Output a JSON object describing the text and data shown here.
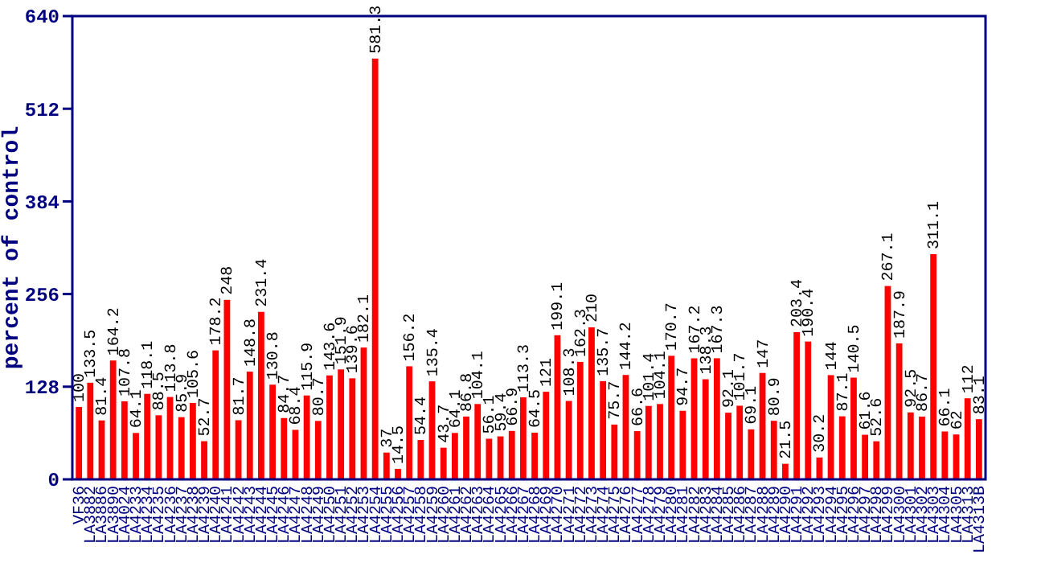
{
  "chart_data": {
    "type": "bar",
    "ylabel": "percent of control",
    "color": "#ff0000",
    "ylim": [
      0,
      640
    ],
    "yticks": [
      0,
      128,
      256,
      384,
      512,
      640
    ],
    "data_labels": true,
    "grid": false,
    "categories": [
      "VF36",
      "LA3882",
      "LA3886",
      "LA3890",
      "LA4024",
      "LA4233",
      "LA4234",
      "LA4235",
      "LA4236",
      "LA4237",
      "LA4238",
      "LA4239",
      "LA4240",
      "LA4241",
      "LA4242",
      "LA4243",
      "LA4244",
      "LA4245",
      "LA4246",
      "LA4247",
      "LA4248",
      "LA4249",
      "LA4250",
      "LA4251",
      "LA4252",
      "LA4253",
      "LA4254",
      "LA4255",
      "LA4256",
      "LA4257",
      "LA4258",
      "LA4259",
      "LA4260",
      "LA4261",
      "LA4262",
      "LA4263",
      "LA4264",
      "LA4265",
      "LA4266",
      "LA4267",
      "LA4268",
      "LA4269",
      "LA4270",
      "LA4271",
      "LA4272",
      "LA4273",
      "LA4274",
      "LA4275",
      "LA4276",
      "LA4277",
      "LA4278",
      "LA4279",
      "LA4280",
      "LA4281",
      "LA4282",
      "LA4283",
      "LA4284",
      "LA4285",
      "LA4286",
      "LA4287",
      "LA4288",
      "LA4289",
      "LA4290",
      "LA4291",
      "LA4292",
      "LA4293",
      "LA4294",
      "LA4295",
      "LA4296",
      "LA4297",
      "LA4298",
      "LA4299",
      "LA4300",
      "LA4301",
      "LA4302",
      "LA4303",
      "LA4304",
      "LA4305",
      "LA4313",
      "LA4313B"
    ],
    "values": [
      100,
      133.5,
      81.4,
      164.2,
      107.8,
      64.1,
      118.1,
      88.5,
      113.8,
      85.9,
      105.6,
      52.7,
      178.2,
      248,
      81.7,
      148.8,
      231.4,
      130.8,
      84.7,
      68.4,
      115.9,
      80.7,
      143.6,
      151.9,
      139.6,
      182.1,
      581.3,
      37,
      14.5,
      156.2,
      54.4,
      135.4,
      43.7,
      64.1,
      86.8,
      104.1,
      56.1,
      59.4,
      66.9,
      113.3,
      64.5,
      121,
      199.1,
      108.3,
      162.3,
      210,
      135.7,
      75.7,
      144.2,
      66.6,
      101.4,
      104.1,
      170.7,
      94.7,
      167.2,
      138.3,
      167.3,
      92.1,
      101.7,
      69.1,
      147,
      80.9,
      21.5,
      203.4,
      190.4,
      30.2,
      144,
      87.1,
      140.5,
      61.6,
      52.6,
      267.1,
      187.9,
      92.5,
      86.7,
      311.1,
      66.1,
      62,
      112,
      83.1
    ]
  }
}
